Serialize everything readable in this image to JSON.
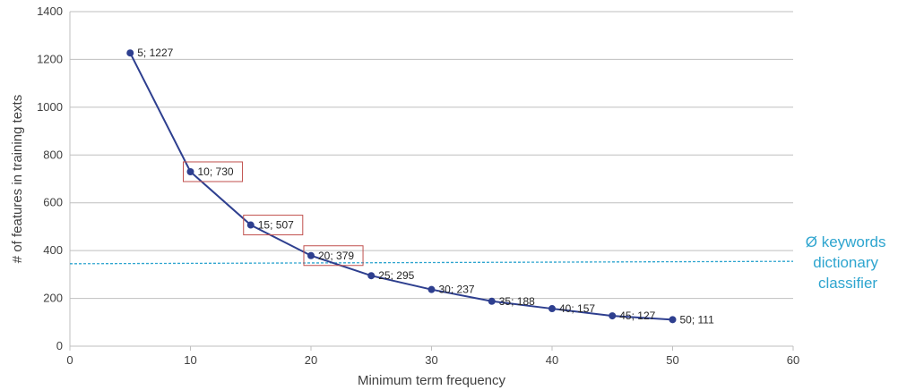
{
  "chart_data": {
    "type": "line",
    "title": "",
    "xlabel": "Minimum term frequency",
    "ylabel": "# of features in training texts",
    "xlim": [
      0,
      60
    ],
    "ylim": [
      0,
      1400
    ],
    "x_ticks": [
      "0",
      "10",
      "20",
      "30",
      "40",
      "50",
      "60"
    ],
    "y_ticks": [
      "0",
      "200",
      "400",
      "600",
      "800",
      "1000",
      "1200",
      "1400"
    ],
    "grid": "horizontal",
    "series": [
      {
        "x": [
          5,
          10,
          15,
          20,
          25,
          30,
          35,
          40,
          45,
          50
        ],
        "y": [
          1227,
          730,
          507,
          379,
          295,
          237,
          188,
          157,
          127,
          111
        ],
        "labels": [
          "5; 1227",
          "10; 730",
          "15; 507",
          "20; 379",
          "25; 295",
          "30; 237",
          "35; 188",
          "40; 157",
          "45; 127",
          "50; 111"
        ],
        "color": "#2e3f8f"
      }
    ],
    "highlighted_points": [
      1,
      2,
      3
    ],
    "highlight_color": "#c0504d",
    "reference_line": {
      "y_start": 345,
      "y_end": 355,
      "style": "dashed",
      "color": "#2ea5cf",
      "label_lines": [
        "Ø keywords",
        "dictionary",
        "classifier"
      ]
    }
  }
}
